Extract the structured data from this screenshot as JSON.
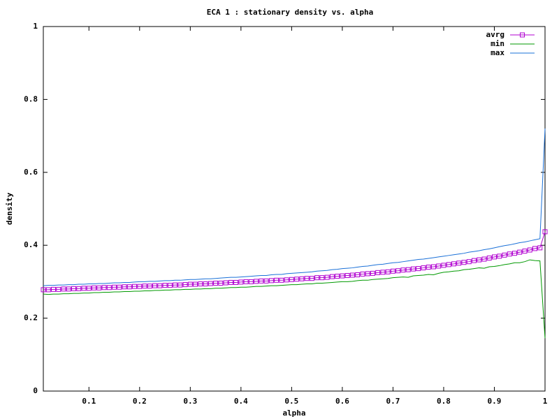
{
  "chart_data": {
    "type": "line",
    "title": "ECA 1 : stationary density vs. alpha",
    "x_label": "alpha",
    "y_label": "density",
    "x": [
      0.01,
      0.02,
      0.03,
      0.04,
      0.05,
      0.06,
      0.07,
      0.08,
      0.09,
      0.1,
      0.11,
      0.12,
      0.13,
      0.14,
      0.15,
      0.16,
      0.17,
      0.18,
      0.19,
      0.2,
      0.21,
      0.22,
      0.23,
      0.24,
      0.25,
      0.26,
      0.27,
      0.28,
      0.29,
      0.3,
      0.31,
      0.32,
      0.33,
      0.34,
      0.35,
      0.36,
      0.37,
      0.38,
      0.39,
      0.4,
      0.41,
      0.42,
      0.43,
      0.44,
      0.45,
      0.46,
      0.47,
      0.48,
      0.49,
      0.5,
      0.51,
      0.52,
      0.53,
      0.54,
      0.55,
      0.56,
      0.57,
      0.58,
      0.59,
      0.6,
      0.61,
      0.62,
      0.63,
      0.64,
      0.65,
      0.66,
      0.67,
      0.68,
      0.69,
      0.7,
      0.71,
      0.72,
      0.73,
      0.74,
      0.75,
      0.76,
      0.77,
      0.78,
      0.79,
      0.8,
      0.81,
      0.82,
      0.83,
      0.84,
      0.85,
      0.86,
      0.87,
      0.88,
      0.89,
      0.9,
      0.91,
      0.92,
      0.93,
      0.94,
      0.95,
      0.96,
      0.97,
      0.98,
      0.99,
      1.0
    ],
    "series": [
      {
        "name": "avrg",
        "color": "#b000d0",
        "marker": "square",
        "values": [
          0.278,
          0.278,
          0.279,
          0.279,
          0.28,
          0.28,
          0.281,
          0.281,
          0.282,
          0.282,
          0.283,
          0.283,
          0.284,
          0.284,
          0.285,
          0.285,
          0.286,
          0.286,
          0.287,
          0.287,
          0.288,
          0.288,
          0.289,
          0.289,
          0.29,
          0.29,
          0.291,
          0.291,
          0.292,
          0.293,
          0.293,
          0.294,
          0.294,
          0.295,
          0.296,
          0.296,
          0.297,
          0.298,
          0.298,
          0.299,
          0.3,
          0.3,
          0.301,
          0.302,
          0.302,
          0.303,
          0.304,
          0.304,
          0.305,
          0.306,
          0.307,
          0.308,
          0.309,
          0.309,
          0.311,
          0.311,
          0.312,
          0.314,
          0.315,
          0.316,
          0.317,
          0.318,
          0.319,
          0.321,
          0.322,
          0.323,
          0.325,
          0.326,
          0.327,
          0.329,
          0.33,
          0.332,
          0.333,
          0.335,
          0.336,
          0.338,
          0.34,
          0.341,
          0.343,
          0.345,
          0.347,
          0.349,
          0.351,
          0.353,
          0.355,
          0.358,
          0.36,
          0.362,
          0.365,
          0.368,
          0.37,
          0.373,
          0.376,
          0.378,
          0.381,
          0.384,
          0.387,
          0.391,
          0.393,
          0.437
        ]
      },
      {
        "name": "min",
        "color": "#009900",
        "values": [
          0.266,
          0.265,
          0.266,
          0.266,
          0.267,
          0.267,
          0.268,
          0.268,
          0.269,
          0.269,
          0.27,
          0.27,
          0.271,
          0.271,
          0.272,
          0.272,
          0.273,
          0.273,
          0.274,
          0.274,
          0.275,
          0.275,
          0.276,
          0.276,
          0.277,
          0.277,
          0.278,
          0.278,
          0.279,
          0.279,
          0.28,
          0.28,
          0.281,
          0.281,
          0.282,
          0.282,
          0.283,
          0.284,
          0.284,
          0.285,
          0.285,
          0.286,
          0.287,
          0.287,
          0.288,
          0.289,
          0.289,
          0.29,
          0.291,
          0.292,
          0.292,
          0.293,
          0.294,
          0.294,
          0.296,
          0.296,
          0.297,
          0.298,
          0.299,
          0.3,
          0.3,
          0.301,
          0.303,
          0.304,
          0.304,
          0.306,
          0.307,
          0.308,
          0.309,
          0.311,
          0.312,
          0.313,
          0.312,
          0.316,
          0.317,
          0.318,
          0.32,
          0.319,
          0.323,
          0.326,
          0.327,
          0.329,
          0.33,
          0.333,
          0.334,
          0.336,
          0.338,
          0.337,
          0.341,
          0.342,
          0.344,
          0.347,
          0.349,
          0.352,
          0.352,
          0.355,
          0.36,
          0.358,
          0.357,
          0.145
        ]
      },
      {
        "name": "max",
        "color": "#1a70d8",
        "values": [
          0.289,
          0.29,
          0.29,
          0.291,
          0.291,
          0.292,
          0.292,
          0.293,
          0.293,
          0.294,
          0.294,
          0.295,
          0.295,
          0.296,
          0.297,
          0.297,
          0.298,
          0.298,
          0.299,
          0.3,
          0.3,
          0.301,
          0.301,
          0.302,
          0.303,
          0.303,
          0.304,
          0.304,
          0.305,
          0.306,
          0.306,
          0.307,
          0.308,
          0.308,
          0.309,
          0.31,
          0.311,
          0.312,
          0.312,
          0.313,
          0.314,
          0.315,
          0.316,
          0.317,
          0.317,
          0.319,
          0.32,
          0.32,
          0.322,
          0.323,
          0.324,
          0.325,
          0.326,
          0.327,
          0.329,
          0.33,
          0.331,
          0.333,
          0.334,
          0.336,
          0.337,
          0.338,
          0.34,
          0.342,
          0.343,
          0.345,
          0.347,
          0.348,
          0.35,
          0.352,
          0.353,
          0.355,
          0.357,
          0.359,
          0.361,
          0.362,
          0.364,
          0.366,
          0.368,
          0.37,
          0.372,
          0.374,
          0.376,
          0.378,
          0.381,
          0.383,
          0.385,
          0.388,
          0.39,
          0.393,
          0.396,
          0.399,
          0.401,
          0.404,
          0.407,
          0.409,
          0.412,
          0.415,
          0.418,
          0.72
        ]
      }
    ],
    "xlim": [
      0.01,
      1
    ],
    "ylim": [
      0,
      1
    ],
    "xticks": [
      0.1,
      0.2,
      0.3,
      0.4,
      0.5,
      0.6,
      0.7,
      0.8,
      0.9,
      1
    ],
    "yticks": [
      0,
      0.2,
      0.4,
      0.6,
      0.8,
      1
    ],
    "grid": false,
    "legend": "top-right"
  }
}
